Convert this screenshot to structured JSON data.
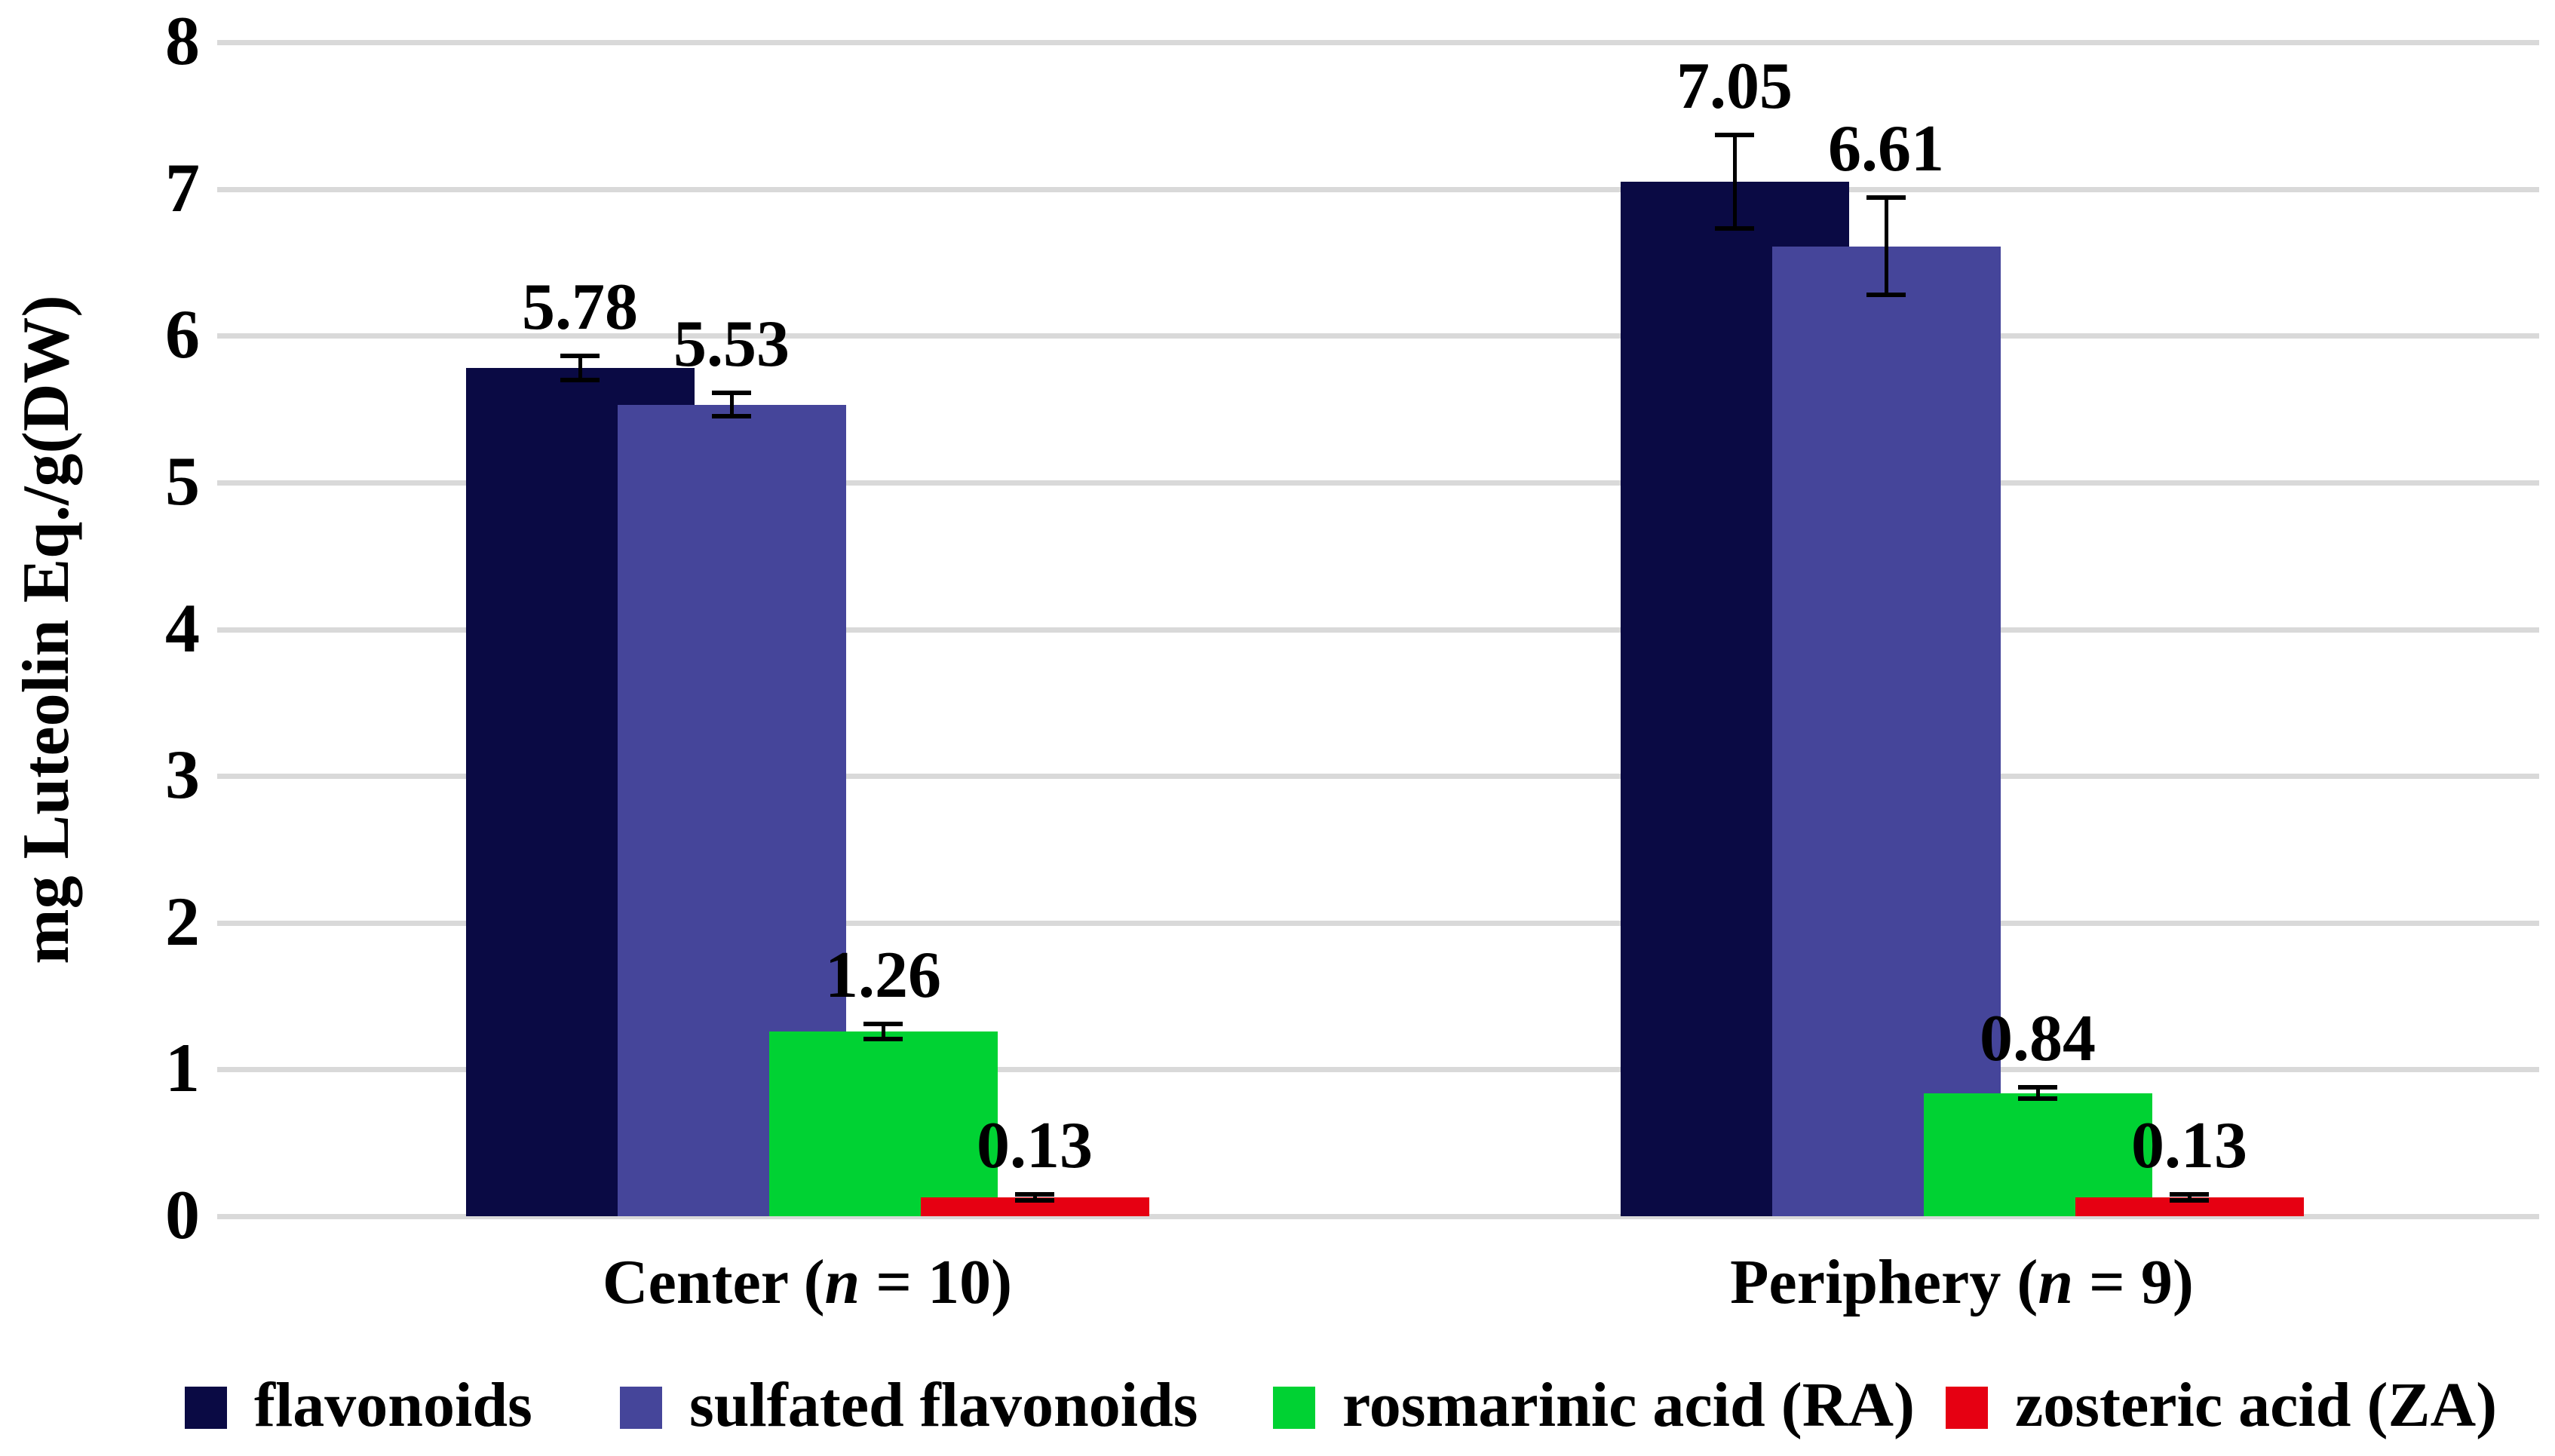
{
  "chart_data": {
    "type": "bar",
    "title": "",
    "ylabel": "mg Luteolin Eq./g(DW)",
    "xlabel": "",
    "ylim": [
      0,
      8
    ],
    "yticks": [
      0,
      1,
      2,
      3,
      4,
      5,
      6,
      7,
      8
    ],
    "grid": true,
    "gridline_color": "#d9d9d9",
    "background_color": "#ffffff",
    "error_bar_color": "#000000",
    "legend_position": "bottom",
    "bar_overlap_percent": 34,
    "categories": [
      "Center (n = 10)",
      "Periphery (n = 9)"
    ],
    "categories_display": [
      {
        "prefix": "Center (",
        "italic": "n",
        "suffix": " = 10)"
      },
      {
        "prefix": "Periphery (",
        "italic": "n",
        "suffix": " = 9)"
      }
    ],
    "series": [
      {
        "name": "flavonoids",
        "color": "#0a0a44",
        "values": [
          5.78,
          7.05
        ],
        "errors": [
          0.08,
          0.32
        ],
        "labels": [
          "5.78",
          "7.05"
        ]
      },
      {
        "name": "sulfated flavonoids",
        "color": "#45459a",
        "values": [
          5.53,
          6.61
        ],
        "errors": [
          0.08,
          0.33
        ],
        "labels": [
          "5.53",
          "6.61"
        ]
      },
      {
        "name": "rosmarinic acid (RA)",
        "color": "#00d233",
        "values": [
          1.26,
          0.84
        ],
        "errors": [
          0.05,
          0.04
        ],
        "labels": [
          "1.26",
          "0.84"
        ]
      },
      {
        "name": "zosteric acid (ZA)",
        "color": "#e60012",
        "values": [
          0.13,
          0.13
        ],
        "errors": [
          0.02,
          0.02
        ],
        "labels": [
          "0.13",
          "0.13"
        ]
      }
    ],
    "legend": [
      {
        "text": "flavonoids",
        "bold": ""
      },
      {
        "text": "sulfated flavonoids",
        "bold": ""
      },
      {
        "text": "rosmarinic acid ",
        "bold": "(RA)"
      },
      {
        "text": "zosteric acid ",
        "bold": "(ZA)"
      }
    ]
  }
}
